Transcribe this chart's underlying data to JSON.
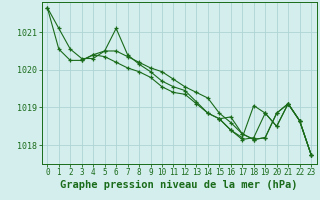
{
  "bg_color": "#d4eeee",
  "grid_color": "#aed4d4",
  "line_color": "#1a6b1a",
  "xlabel": "Graphe pression niveau de la mer (hPa)",
  "xlabel_fontsize": 7.5,
  "xlim": [
    -0.5,
    23.5
  ],
  "ylim": [
    1017.5,
    1021.8
  ],
  "yticks": [
    1018,
    1019,
    1020,
    1021
  ],
  "xticks": [
    0,
    1,
    2,
    3,
    4,
    5,
    6,
    7,
    8,
    9,
    10,
    11,
    12,
    13,
    14,
    15,
    16,
    17,
    18,
    19,
    20,
    21,
    22,
    23
  ],
  "series": [
    {
      "x": [
        0,
        1,
        2,
        3,
        4,
        5,
        6,
        7,
        8,
        9,
        10,
        11,
        12,
        13,
        14,
        15,
        16,
        17,
        18,
        19,
        20,
        21,
        22,
        23
      ],
      "y": [
        1021.65,
        1021.1,
        1020.55,
        1020.3,
        1020.3,
        1020.5,
        1021.1,
        1020.4,
        1020.15,
        1019.95,
        1019.7,
        1019.55,
        1019.45,
        1019.15,
        1018.85,
        1018.7,
        1018.4,
        1018.2,
        1019.05,
        1018.85,
        1018.5,
        1019.1,
        1018.65,
        1017.75
      ]
    },
    {
      "x": [
        0,
        1,
        2,
        3,
        4,
        5,
        6,
        7,
        8,
        9,
        10,
        11,
        12,
        13,
        14,
        15,
        16,
        17,
        18,
        19,
        20,
        21,
        22,
        23
      ],
      "y": [
        1021.65,
        1020.55,
        1020.25,
        1020.25,
        1020.4,
        1020.35,
        1020.2,
        1020.05,
        1019.95,
        1019.8,
        1019.55,
        1019.4,
        1019.35,
        1019.1,
        1018.85,
        1018.7,
        1018.4,
        1018.15,
        1018.2,
        1018.85,
        1018.5,
        1019.1,
        1018.65,
        1017.75
      ]
    },
    {
      "x": [
        3,
        4,
        5,
        6,
        7,
        8,
        9,
        10,
        11,
        12,
        13,
        14,
        15,
        16,
        17,
        18,
        19,
        20,
        21,
        22,
        23
      ],
      "y": [
        1020.25,
        1020.4,
        1020.5,
        1020.5,
        1020.35,
        1020.2,
        1020.05,
        1019.95,
        1019.75,
        1019.55,
        1019.4,
        1019.25,
        1018.85,
        1018.6,
        1018.3,
        1018.15,
        1018.2,
        1018.85,
        1019.1,
        1018.65,
        1017.75
      ]
    },
    {
      "x": [
        15,
        16,
        17,
        18,
        19,
        20,
        21,
        22,
        23
      ],
      "y": [
        1018.7,
        1018.75,
        1018.3,
        1018.15,
        1018.2,
        1018.85,
        1019.1,
        1018.65,
        1017.75
      ]
    }
  ]
}
